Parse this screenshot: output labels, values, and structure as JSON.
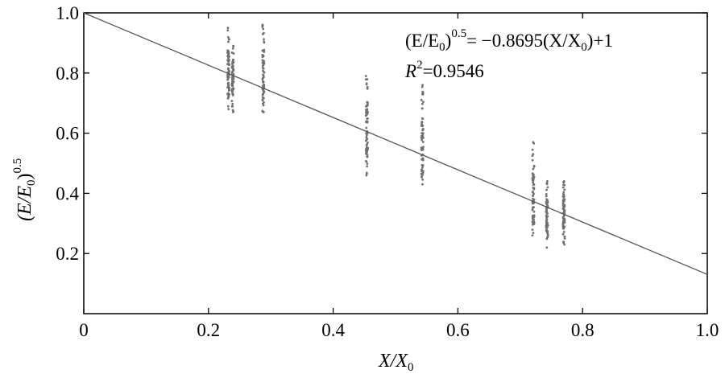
{
  "chart_data": {
    "type": "scatter",
    "xlim": [
      0,
      1.0
    ],
    "ylim": [
      0,
      1.0
    ],
    "x_ticks": [
      "0",
      "0.2",
      "0.4",
      "0.6",
      "0.8",
      "1.0"
    ],
    "y_ticks": [
      "0.2",
      "0.4",
      "0.6",
      "0.8",
      "1.0"
    ],
    "xlabel": {
      "main": "X/X",
      "sub": "0"
    },
    "ylabel": {
      "pre": "(E/E",
      "sub": "0",
      "post": ")",
      "sup": "0.5"
    },
    "grid": false,
    "marker_color": "#707070",
    "line_color": "#555555",
    "fit_line": {
      "slope": -0.8695,
      "intercept": 1
    },
    "annotation": {
      "eq_pre": "(E/E",
      "eq_sub": "0",
      "eq_close": ")",
      "eq_sup": "0.5",
      "eq_rhs1": "= −0.8695(X/X",
      "eq_rhs_sub": "0",
      "eq_rhs2": ")+1",
      "r2_label": "R",
      "r2_sup": "2",
      "r2_value": "=0.9546"
    },
    "series": [
      {
        "x": 0.232,
        "y_min": 0.68,
        "y_max": 0.95,
        "center": 0.8
      },
      {
        "x": 0.239,
        "y_min": 0.67,
        "y_max": 0.89,
        "center": 0.79
      },
      {
        "x": 0.288,
        "y_min": 0.67,
        "y_max": 0.96,
        "center": 0.78
      },
      {
        "x": 0.454,
        "y_min": 0.46,
        "y_max": 0.79,
        "center": 0.61
      },
      {
        "x": 0.543,
        "y_min": 0.43,
        "y_max": 0.76,
        "center": 0.55
      },
      {
        "x": 0.721,
        "y_min": 0.26,
        "y_max": 0.57,
        "center": 0.38
      },
      {
        "x": 0.743,
        "y_min": 0.22,
        "y_max": 0.44,
        "center": 0.32
      },
      {
        "x": 0.77,
        "y_min": 0.23,
        "y_max": 0.44,
        "center": 0.34
      }
    ]
  }
}
